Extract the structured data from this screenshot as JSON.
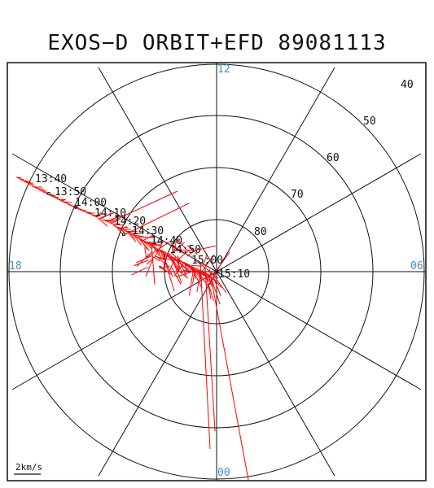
{
  "title": "EXOS−D ORBIT+EFD 89081113",
  "latitude_labels": [
    "40",
    "50",
    "60",
    "70",
    "80"
  ],
  "mlt_labels": {
    "top": "12",
    "left": "18",
    "right": "06",
    "bottom": "00"
  },
  "time_labels": [
    "13:40",
    "13:50",
    "14:00",
    "14:10",
    "14:20",
    "14:30",
    "14:40",
    "14:50",
    "15:00",
    "15:10"
  ],
  "scale_label": "2km/s",
  "colors": {
    "vectors": "#ff0000",
    "grid": "#111111",
    "mlt_labels": "#3c8fd0"
  }
}
